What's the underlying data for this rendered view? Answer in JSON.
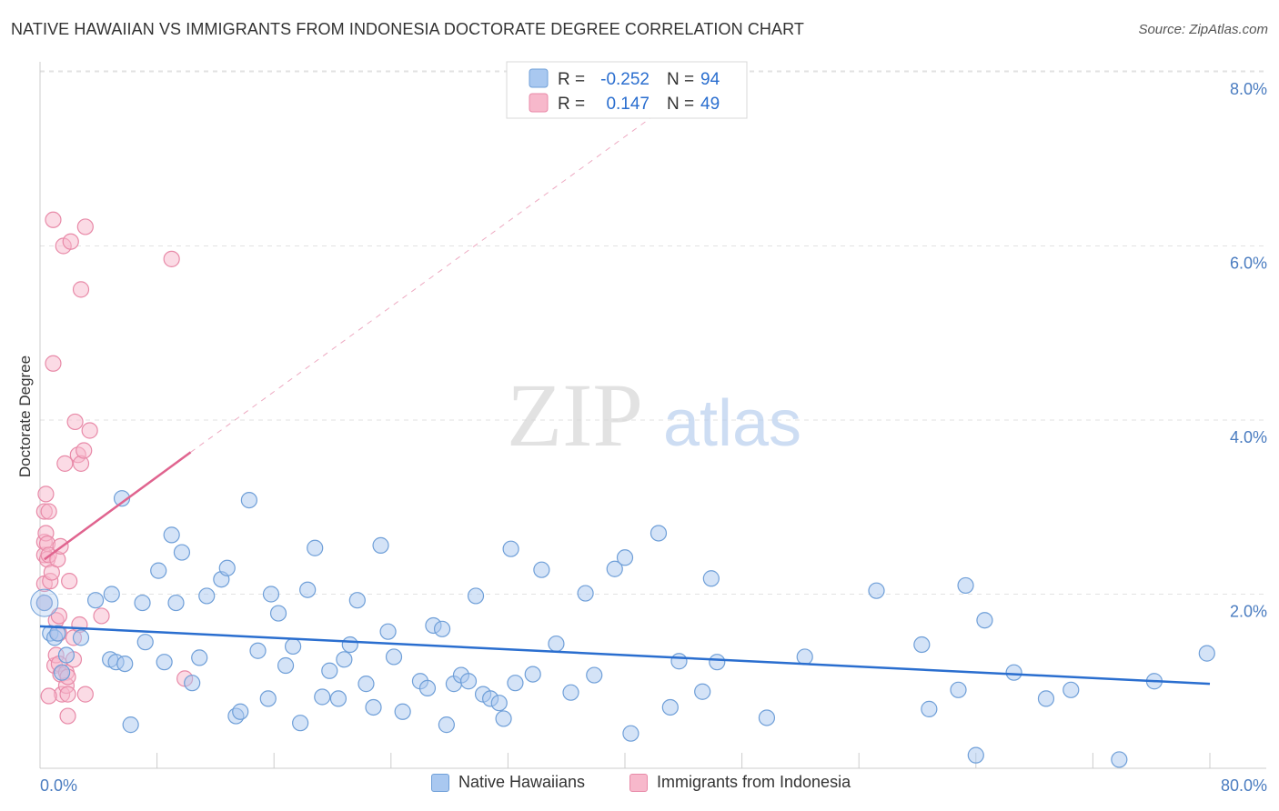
{
  "title": "NATIVE HAWAIIAN VS IMMIGRANTS FROM INDONESIA DOCTORATE DEGREE CORRELATION CHART",
  "source": "Source: ZipAtlas.com",
  "watermark": {
    "zip": "ZIP",
    "atlas": "atlas"
  },
  "colors": {
    "blue_fill": "#a9c8f0",
    "blue_stroke": "#6f9fd8",
    "blue_line": "#2a6ecf",
    "pink_fill": "#f7b8cb",
    "pink_stroke": "#e88aa8",
    "pink_line": "#e0648f",
    "grid": "#e2e2e2",
    "axis_text": "#4a7cc0"
  },
  "legend_box": {
    "rows": [
      {
        "r_label": "R =",
        "r_value": "-0.252",
        "n_label": "N =",
        "n_value": "94",
        "series": "blue"
      },
      {
        "r_label": "R =",
        "r_value": "0.147",
        "n_label": "N =",
        "n_value": "49",
        "series": "pink"
      }
    ]
  },
  "bottom_legend": [
    {
      "label": "Native Hawaiians",
      "series": "blue"
    },
    {
      "label": "Immigrants from Indonesia",
      "series": "pink"
    }
  ],
  "chart_data": {
    "type": "scatter",
    "title": "NATIVE HAWAIIAN VS IMMIGRANTS FROM INDONESIA DOCTORATE DEGREE CORRELATION CHART",
    "xlabel": "",
    "ylabel": "Doctorate Degree",
    "xlim": [
      0,
      80
    ],
    "ylim": [
      0,
      8.3
    ],
    "x_tick_labels": [
      {
        "value": 0,
        "label": "0.0%"
      },
      {
        "value": 80,
        "label": "80.0%"
      }
    ],
    "y_tick_labels": [
      {
        "value": 2,
        "label": "2.0%"
      },
      {
        "value": 4,
        "label": "4.0%"
      },
      {
        "value": 6,
        "label": "6.0%"
      },
      {
        "value": 8,
        "label": "8.0%"
      }
    ],
    "grid": true,
    "legend_position": "top-center",
    "series": [
      {
        "name": "Native Hawaiians",
        "color": "blue",
        "trend": {
          "x0": 0,
          "y0": 1.63,
          "x1": 80,
          "y1": 0.97
        },
        "points": [
          [
            0.3,
            1.9
          ],
          [
            0.7,
            1.55
          ],
          [
            1.0,
            1.5
          ],
          [
            1.2,
            1.55
          ],
          [
            1.5,
            1.1
          ],
          [
            1.8,
            1.3
          ],
          [
            2.8,
            1.5
          ],
          [
            3.8,
            1.93
          ],
          [
            4.8,
            1.25
          ],
          [
            4.9,
            2.0
          ],
          [
            5.2,
            1.22
          ],
          [
            5.8,
            1.2
          ],
          [
            5.6,
            3.1
          ],
          [
            6.2,
            0.5
          ],
          [
            7.0,
            1.9
          ],
          [
            7.2,
            1.45
          ],
          [
            8.1,
            2.27
          ],
          [
            8.5,
            1.22
          ],
          [
            9.0,
            2.68
          ],
          [
            9.3,
            1.9
          ],
          [
            9.7,
            2.48
          ],
          [
            10.4,
            0.98
          ],
          [
            10.9,
            1.27
          ],
          [
            11.4,
            1.98
          ],
          [
            12.4,
            2.17
          ],
          [
            12.8,
            2.3
          ],
          [
            13.4,
            0.6
          ],
          [
            13.7,
            0.65
          ],
          [
            14.3,
            3.08
          ],
          [
            14.9,
            1.35
          ],
          [
            15.6,
            0.8
          ],
          [
            15.8,
            2.0
          ],
          [
            16.3,
            1.78
          ],
          [
            16.8,
            1.18
          ],
          [
            17.3,
            1.4
          ],
          [
            17.8,
            0.52
          ],
          [
            18.3,
            2.05
          ],
          [
            18.8,
            2.53
          ],
          [
            19.3,
            0.82
          ],
          [
            19.8,
            1.12
          ],
          [
            20.4,
            0.8
          ],
          [
            20.8,
            1.25
          ],
          [
            21.2,
            1.42
          ],
          [
            21.7,
            1.93
          ],
          [
            22.3,
            0.97
          ],
          [
            22.8,
            0.7
          ],
          [
            23.3,
            2.56
          ],
          [
            23.8,
            1.57
          ],
          [
            24.2,
            1.28
          ],
          [
            24.8,
            0.65
          ],
          [
            26.0,
            1.0
          ],
          [
            26.5,
            0.92
          ],
          [
            26.9,
            1.64
          ],
          [
            27.5,
            1.6
          ],
          [
            27.8,
            0.5
          ],
          [
            28.3,
            0.97
          ],
          [
            28.8,
            1.07
          ],
          [
            29.3,
            1.0
          ],
          [
            29.8,
            1.98
          ],
          [
            30.3,
            0.85
          ],
          [
            30.8,
            0.8
          ],
          [
            31.4,
            0.75
          ],
          [
            31.7,
            0.57
          ],
          [
            32.2,
            2.52
          ],
          [
            32.5,
            0.98
          ],
          [
            33.7,
            1.08
          ],
          [
            34.3,
            2.28
          ],
          [
            35.3,
            1.43
          ],
          [
            36.3,
            0.87
          ],
          [
            37.3,
            2.01
          ],
          [
            37.9,
            1.07
          ],
          [
            39.3,
            2.29
          ],
          [
            40.0,
            2.42
          ],
          [
            40.4,
            0.4
          ],
          [
            42.3,
            2.7
          ],
          [
            43.1,
            0.7
          ],
          [
            43.7,
            1.23
          ],
          [
            45.3,
            0.88
          ],
          [
            45.9,
            2.18
          ],
          [
            46.3,
            1.22
          ],
          [
            49.7,
            0.58
          ],
          [
            52.3,
            1.28
          ],
          [
            57.2,
            2.04
          ],
          [
            60.3,
            1.42
          ],
          [
            60.8,
            0.68
          ],
          [
            62.8,
            0.9
          ],
          [
            63.3,
            2.1
          ],
          [
            64.0,
            0.15
          ],
          [
            64.6,
            1.7
          ],
          [
            66.6,
            1.1
          ],
          [
            68.8,
            0.8
          ],
          [
            70.5,
            0.9
          ],
          [
            73.8,
            0.1
          ],
          [
            76.2,
            1.0
          ],
          [
            79.8,
            1.32
          ]
        ]
      },
      {
        "name": "Immigrants from Indonesia",
        "color": "pink",
        "trend": {
          "x0": 0.3,
          "y0": 2.4,
          "x1": 10.3,
          "y1": 3.63
        },
        "trend_dashed": {
          "x0": 10.3,
          "y0": 3.63,
          "x1": 42,
          "y1": 7.5
        },
        "points": [
          [
            0.3,
            2.12
          ],
          [
            0.3,
            1.9
          ],
          [
            0.3,
            2.45
          ],
          [
            0.3,
            2.6
          ],
          [
            0.3,
            2.95
          ],
          [
            0.4,
            3.15
          ],
          [
            0.4,
            2.7
          ],
          [
            0.5,
            2.4
          ],
          [
            0.5,
            2.58
          ],
          [
            0.6,
            2.95
          ],
          [
            0.6,
            2.45
          ],
          [
            0.7,
            2.15
          ],
          [
            0.8,
            2.25
          ],
          [
            0.9,
            4.65
          ],
          [
            0.9,
            6.3
          ],
          [
            1.0,
            1.18
          ],
          [
            1.1,
            1.7
          ],
          [
            1.1,
            1.3
          ],
          [
            1.2,
            2.4
          ],
          [
            1.3,
            1.75
          ],
          [
            1.3,
            1.2
          ],
          [
            1.3,
            1.55
          ],
          [
            1.4,
            2.55
          ],
          [
            1.4,
            1.08
          ],
          [
            1.5,
            0.85
          ],
          [
            1.6,
            6.0
          ],
          [
            1.7,
            3.5
          ],
          [
            1.8,
            1.1
          ],
          [
            1.8,
            0.95
          ],
          [
            1.9,
            1.05
          ],
          [
            1.9,
            0.85
          ],
          [
            1.9,
            0.6
          ],
          [
            2.0,
            2.15
          ],
          [
            2.1,
            6.05
          ],
          [
            2.3,
            1.25
          ],
          [
            2.3,
            1.5
          ],
          [
            2.4,
            3.98
          ],
          [
            2.6,
            3.6
          ],
          [
            2.7,
            1.65
          ],
          [
            2.8,
            3.5
          ],
          [
            2.8,
            5.5
          ],
          [
            3.0,
            3.65
          ],
          [
            3.1,
            6.22
          ],
          [
            3.1,
            0.85
          ],
          [
            3.4,
            3.88
          ],
          [
            4.2,
            1.75
          ],
          [
            9.0,
            5.85
          ],
          [
            9.9,
            1.03
          ],
          [
            0.6,
            0.83
          ]
        ]
      }
    ]
  }
}
